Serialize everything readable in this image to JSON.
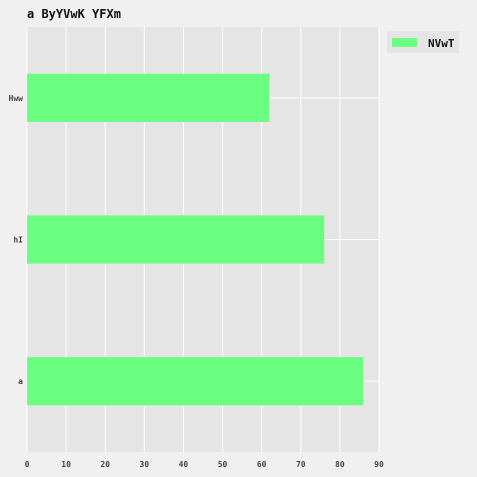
{
  "chart_data": {
    "type": "bar",
    "orientation": "horizontal",
    "title": "a ByYVwK YFXm",
    "xlabel": "",
    "ylabel": "",
    "categories": [
      "Hww",
      "hI",
      "a"
    ],
    "series": [
      {
        "name": "NVwT",
        "values": [
          62,
          76,
          86
        ],
        "color": "#6bff82"
      }
    ],
    "xlim": [
      0,
      90
    ],
    "xticks": [
      "0",
      "10",
      "20",
      "30",
      "40",
      "50",
      "60",
      "70",
      "80",
      "90"
    ],
    "grid": true,
    "legend_position": "top-right",
    "colors": {
      "plot_bg": "#e5e5e5",
      "page_bg": "#f0f0f0",
      "grid": "#ffffff"
    }
  }
}
